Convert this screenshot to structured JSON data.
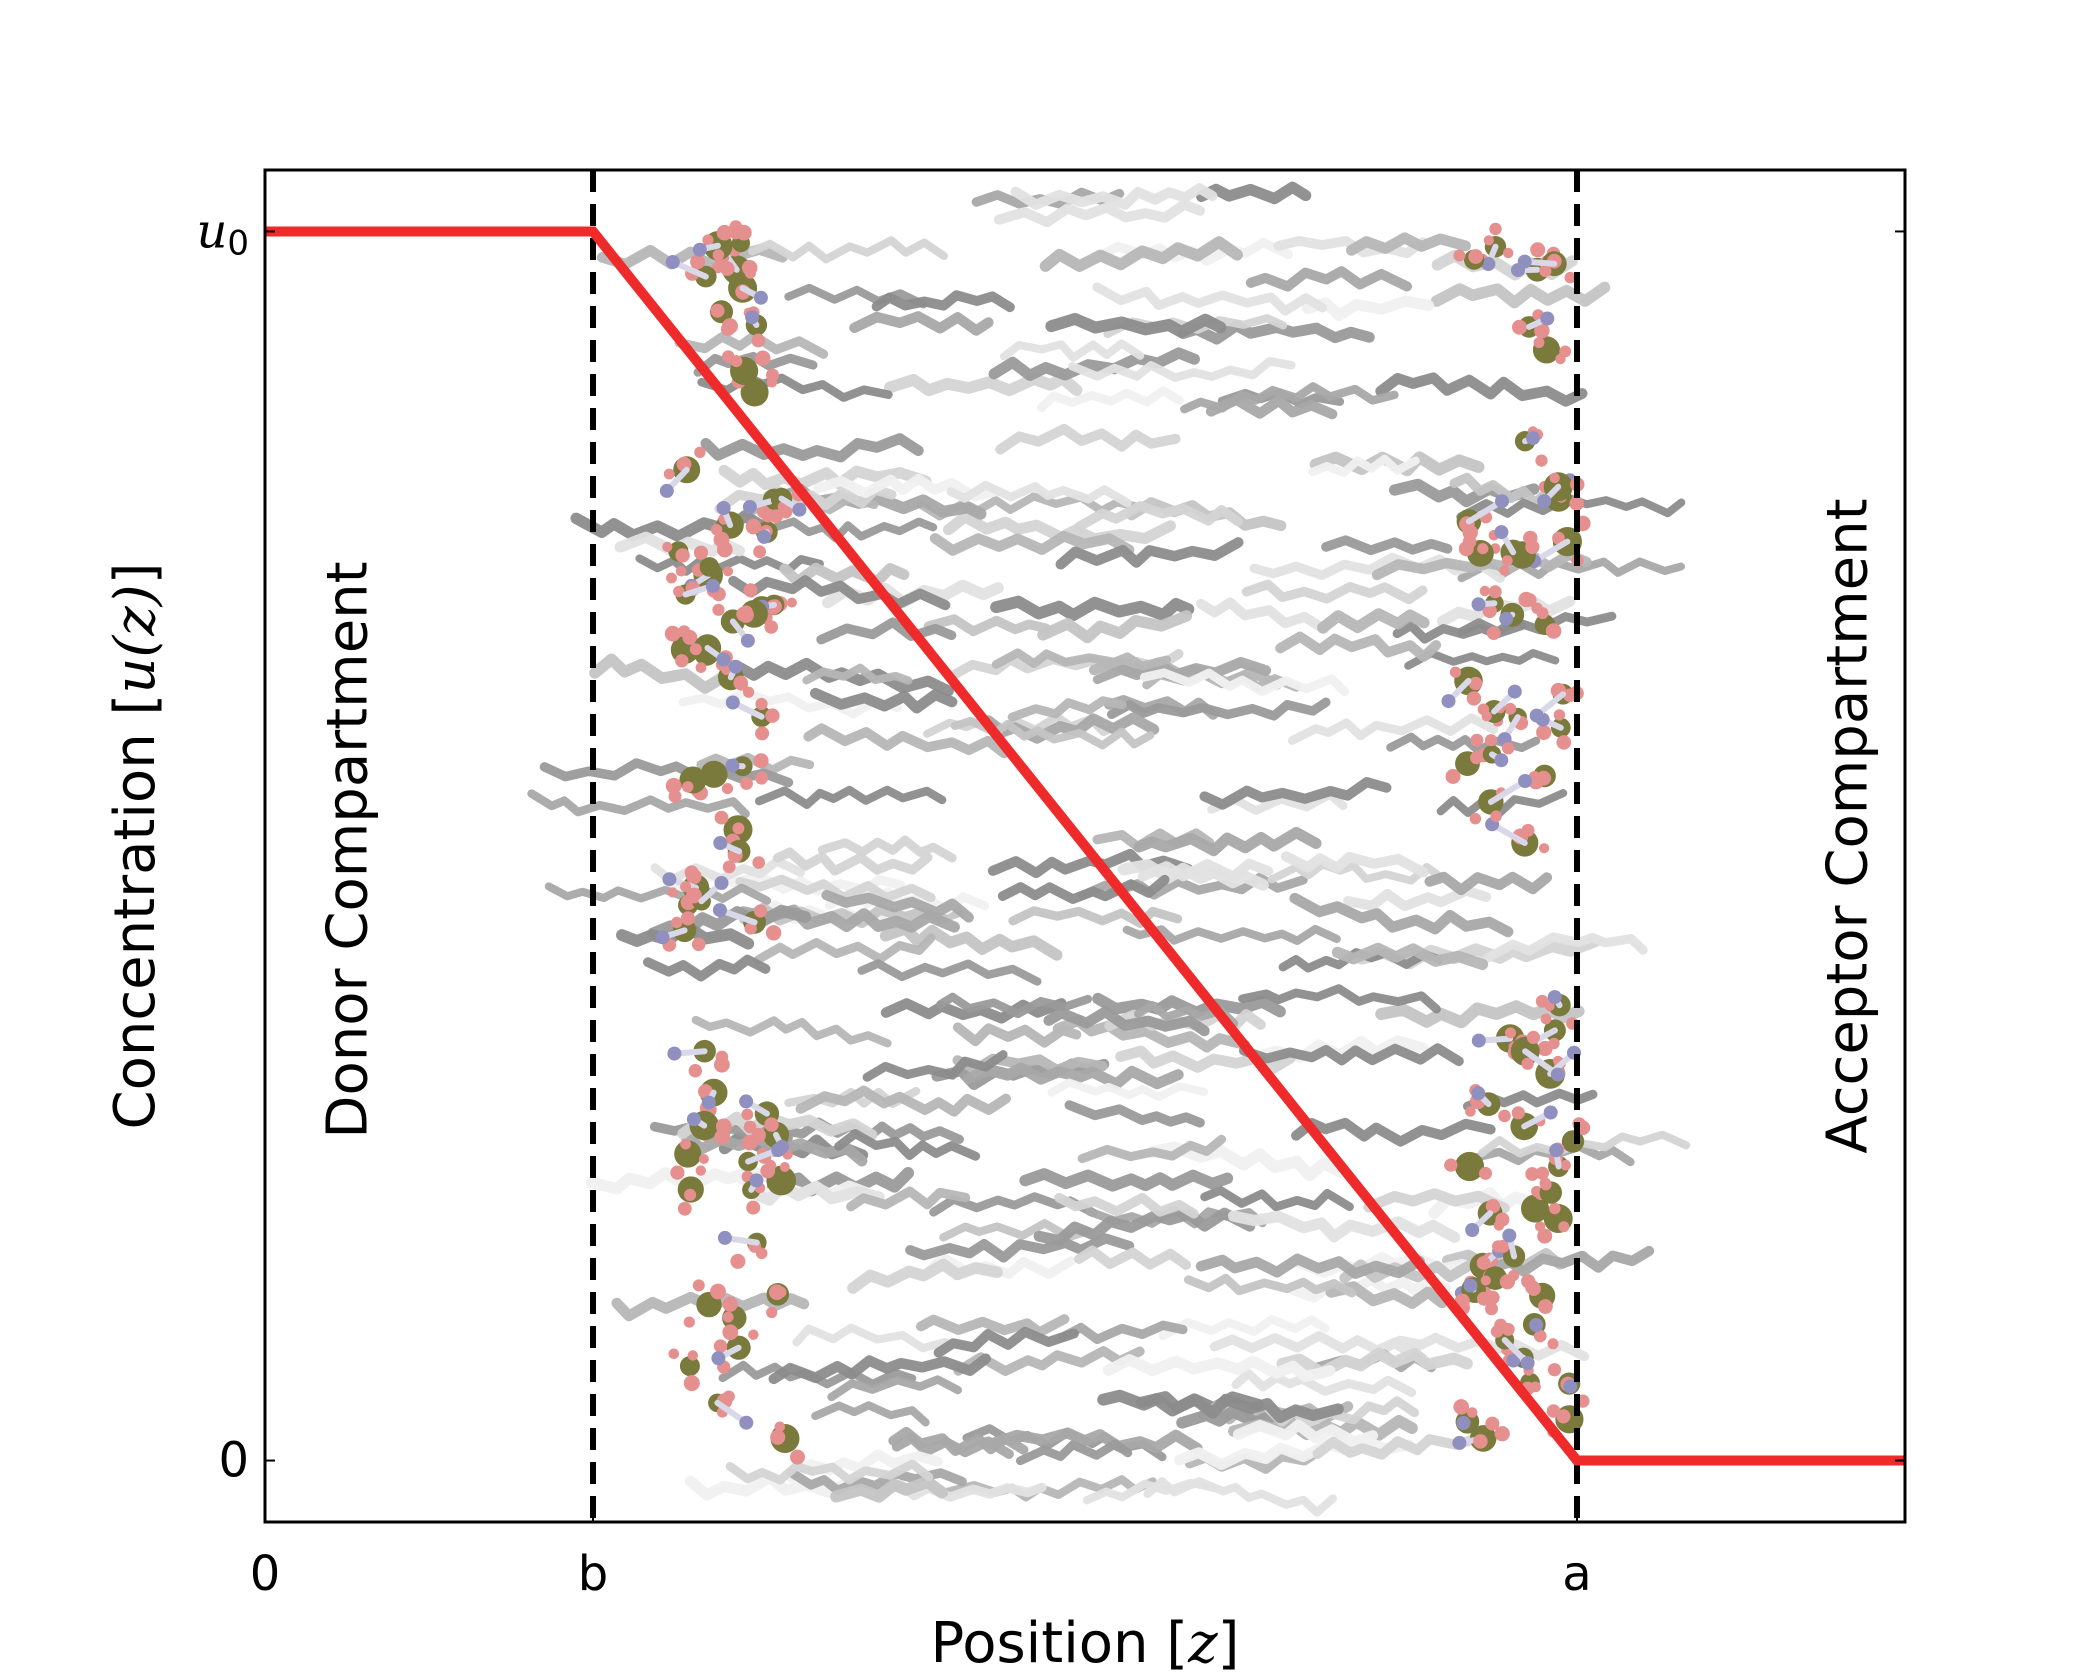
{
  "chart_data": {
    "type": "line",
    "title": "",
    "xlabel": "Position [z]",
    "xlabel_text": "Position [",
    "xlabel_var": "z",
    "xlabel_close": "]",
    "ylabel": "Concentration [u(z)]",
    "ylabel_text": "Concentration [",
    "ylabel_var": "u(z)",
    "ylabel_close": "]",
    "xlim": [
      0,
      1
    ],
    "ylim": [
      -0.05,
      1.05
    ],
    "x_ticks": [
      {
        "value": 0,
        "label": "0"
      },
      {
        "value": 0.2,
        "label": "b"
      },
      {
        "value": 0.8,
        "label": "a"
      }
    ],
    "y_ticks": [
      {
        "value": 0,
        "label": "0"
      },
      {
        "value": 1,
        "label": "u0",
        "label_base": "u",
        "label_sub": "0"
      }
    ],
    "series": [
      {
        "color": "#ee2a2a",
        "points": [
          [
            0,
            1
          ],
          [
            0.2,
            1
          ],
          [
            0.8,
            0
          ],
          [
            1,
            0
          ]
        ]
      }
    ],
    "vertical_lines": [
      {
        "x": 0.2,
        "style": "dashed",
        "color": "#000000"
      },
      {
        "x": 0.8,
        "style": "dashed",
        "color": "#000000"
      }
    ],
    "annotations": [
      {
        "text": "Donor Compartment",
        "region": "left"
      },
      {
        "text": "Acceptor Compartment",
        "region": "right"
      }
    ],
    "background_image": "lipid-bilayer-molecular-render",
    "grid": false
  }
}
